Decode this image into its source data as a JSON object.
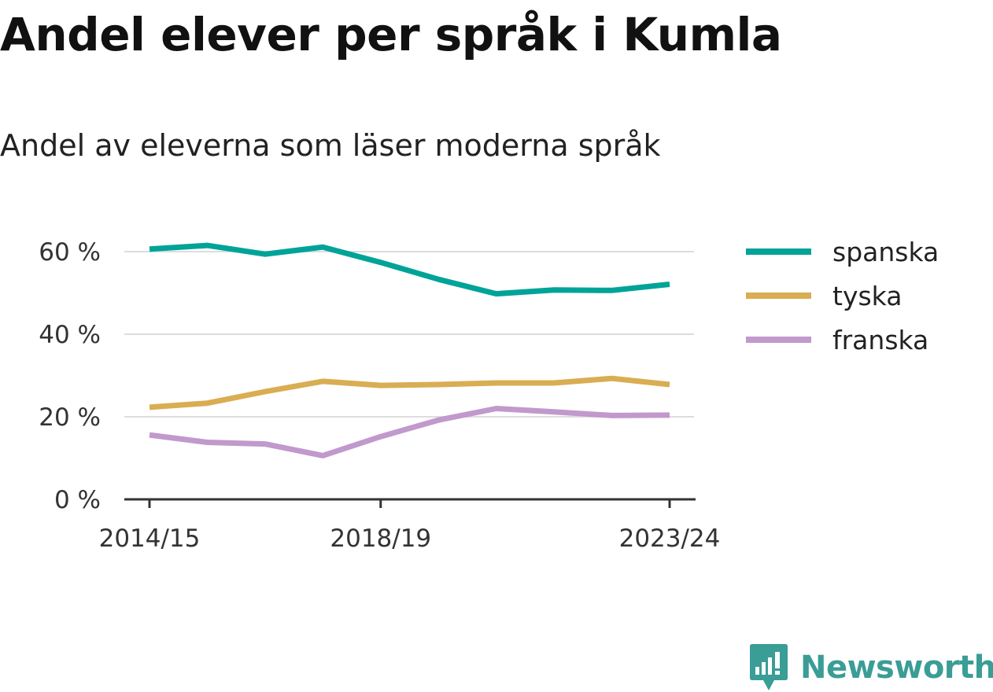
{
  "title": "Andel elever per språk i Kumla",
  "subtitle": "Andel av eleverna som läser moderna språk",
  "brand": "Newsworthy",
  "colors": {
    "spanska": "#00a398",
    "tyska": "#d9ad52",
    "franska": "#c199cc",
    "grid": "#dddddd",
    "axis": "#333333"
  },
  "chart_data": {
    "type": "line",
    "title": "Andel elever per språk i Kumla",
    "subtitle": "Andel av eleverna som läser moderna språk",
    "x": [
      "2014/15",
      "2015/16",
      "2016/17",
      "2017/18",
      "2018/19",
      "2019/20",
      "2020/21",
      "2021/22",
      "2022/23",
      "2023/24"
    ],
    "x_ticks": [
      "2014/15",
      "2018/19",
      "2023/24"
    ],
    "y_ticks": [
      "0 %",
      "20 %",
      "40 %",
      "60 %"
    ],
    "y_tick_values": [
      0,
      20,
      40,
      60
    ],
    "ylim": [
      0,
      70
    ],
    "unit": "%",
    "grid": "horizontal",
    "legend_position": "right",
    "series": [
      {
        "name": "spanska",
        "color": "#00a398",
        "values": [
          60.6,
          61.5,
          59.4,
          61.1,
          57.4,
          53.3,
          49.8,
          50.7,
          50.6,
          52.1
        ]
      },
      {
        "name": "tyska",
        "color": "#d9ad52",
        "values": [
          22.3,
          23.3,
          26.1,
          28.6,
          27.6,
          27.8,
          28.2,
          28.2,
          29.3,
          27.8
        ]
      },
      {
        "name": "franska",
        "color": "#c199cc",
        "values": [
          15.6,
          13.8,
          13.4,
          10.6,
          15.2,
          19.2,
          22.0,
          21.2,
          20.3,
          20.4
        ]
      }
    ]
  }
}
